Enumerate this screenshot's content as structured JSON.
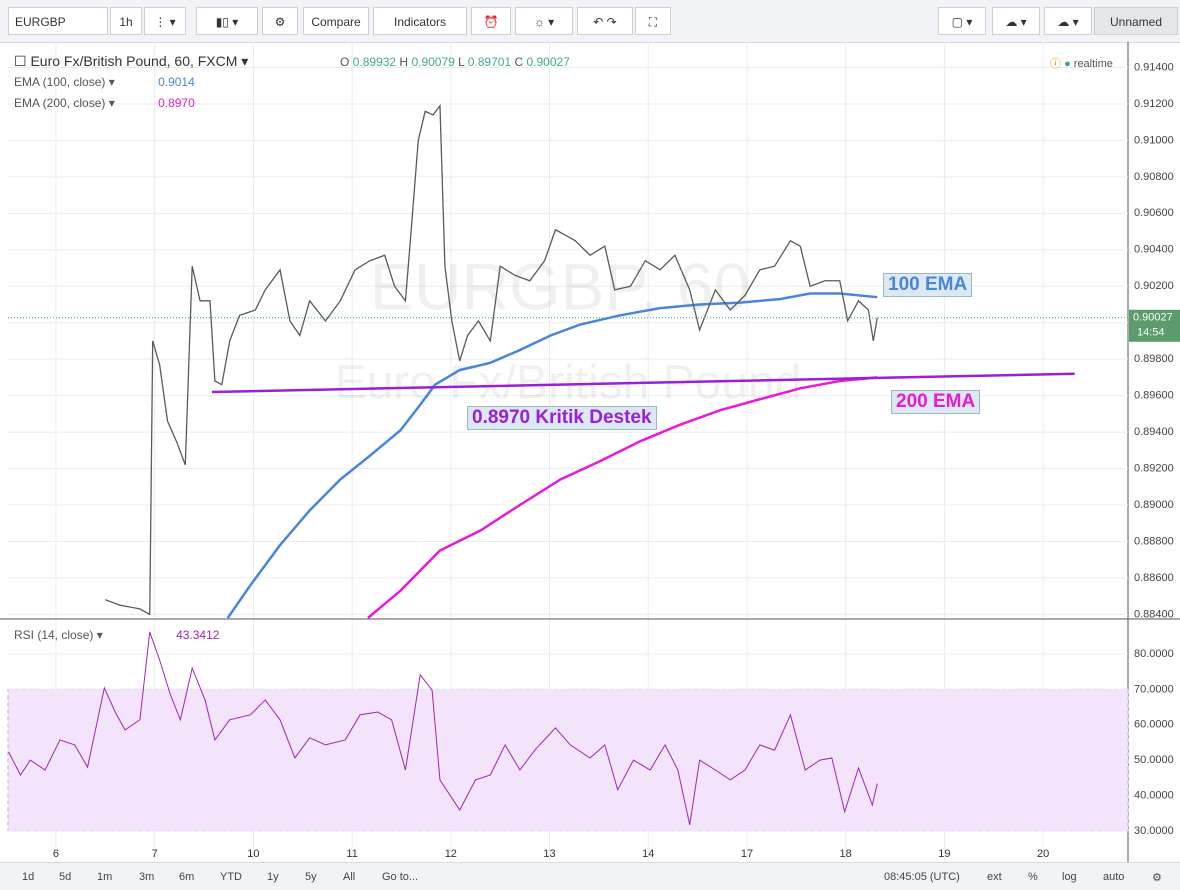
{
  "toolbar": {
    "symbol": "EURGBP",
    "interval": "1h",
    "buttons": [
      "Compare",
      "Indicators"
    ],
    "layout": "Unnamed"
  },
  "legend": {
    "ohlc_labels": [
      "O",
      "H",
      "L",
      "C"
    ],
    "ohlc_values": [
      "0.89932",
      "0.90079",
      "0.89701",
      "0.90027"
    ],
    "status": "realtime"
  },
  "x_axis": {
    "xlim": [
      -0.486,
      10.86
    ],
    "xticks": [
      {
        "value": 0,
        "label": "6"
      },
      {
        "value": 1,
        "label": "7"
      },
      {
        "value": 2,
        "label": "10"
      },
      {
        "value": 3,
        "label": "11"
      },
      {
        "value": 4,
        "label": "12"
      },
      {
        "value": 5,
        "label": "13"
      },
      {
        "value": 6,
        "label": "14"
      },
      {
        "value": 7,
        "label": "17"
      },
      {
        "value": 8,
        "label": "18"
      },
      {
        "value": 9,
        "label": "19"
      },
      {
        "value": 10,
        "label": "20"
      }
    ]
  },
  "chart_data": [
    {
      "type": "line",
      "title": "Euro Fx/British Pound, 60, FXCM",
      "watermark": "EURGBP, 60",
      "watermark_subtitle": "Euro Fx/British Pound",
      "color": "#5a5a5a",
      "x": [
        0.5,
        0.65,
        0.85,
        0.95,
        0.98,
        1.05,
        1.13,
        1.22,
        1.31,
        1.38,
        1.46,
        1.56,
        1.61,
        1.68,
        1.76,
        1.86,
        2.02,
        2.12,
        2.27,
        2.37,
        2.47,
        2.57,
        2.73,
        2.88,
        3.03,
        3.18,
        3.33,
        3.43,
        3.54,
        3.59,
        3.67,
        3.74,
        3.82,
        3.89,
        3.94,
        4.01,
        4.09,
        4.17,
        4.28,
        4.4,
        4.5,
        4.65,
        4.8,
        4.95,
        5.06,
        5.16,
        5.26,
        5.41,
        5.56,
        5.66,
        5.82,
        5.97,
        6.12,
        6.27,
        6.42,
        6.52,
        6.68,
        6.83,
        6.98,
        7.13,
        7.28,
        7.44,
        7.54,
        7.64,
        7.79,
        7.94,
        8.02,
        8.13,
        8.23,
        8.28,
        8.32
      ],
      "values": [
        0.8848,
        0.8845,
        0.8843,
        0.884,
        0.899,
        0.8977,
        0.8946,
        0.8935,
        0.8922,
        0.9031,
        0.9012,
        0.9012,
        0.8968,
        0.8966,
        0.899,
        0.9004,
        0.9007,
        0.9018,
        0.9029,
        0.9001,
        0.8993,
        0.9012,
        0.9001,
        0.9012,
        0.9029,
        0.9034,
        0.9037,
        0.902,
        0.9012,
        0.9045,
        0.91,
        0.9116,
        0.9114,
        0.9119,
        0.9031,
        0.9001,
        0.8979,
        0.8993,
        0.9001,
        0.899,
        0.9031,
        0.9026,
        0.9023,
        0.9034,
        0.9051,
        0.9048,
        0.9045,
        0.9037,
        0.9042,
        0.9018,
        0.902,
        0.9034,
        0.9029,
        0.9037,
        0.9018,
        0.8996,
        0.9018,
        0.9007,
        0.9015,
        0.9029,
        0.9031,
        0.9045,
        0.9042,
        0.902,
        0.9023,
        0.9023,
        0.9001,
        0.9012,
        0.9007,
        0.899,
        0.90027
      ],
      "series": [
        {
          "name": "EMA (100, close)",
          "value_label": "0.9014",
          "color": "#4a86d8",
          "annotation": "100 EMA",
          "x": [
            1.74,
            1.97,
            2.27,
            2.57,
            2.88,
            3.18,
            3.49,
            3.69,
            3.84,
            4.09,
            4.4,
            4.7,
            5.01,
            5.31,
            5.71,
            6.12,
            6.52,
            6.93,
            7.34,
            7.64,
            7.94,
            8.32
          ],
          "values": [
            0.8838,
            0.8856,
            0.8878,
            0.8897,
            0.8914,
            0.8927,
            0.8941,
            0.8955,
            0.8966,
            0.8974,
            0.8978,
            0.8985,
            0.8993,
            0.8999,
            0.9004,
            0.9008,
            0.901,
            0.9011,
            0.9013,
            0.9016,
            0.9016,
            0.9014
          ]
        },
        {
          "name": "EMA (200, close)",
          "value_label": "0.8970",
          "color": "#e81ad8",
          "annotation": "200 EMA",
          "x": [
            3.16,
            3.49,
            3.89,
            4.3,
            4.7,
            5.11,
            5.51,
            5.92,
            6.32,
            6.73,
            7.13,
            7.54,
            7.94,
            8.32
          ],
          "values": [
            0.8838,
            0.8853,
            0.8875,
            0.8886,
            0.89,
            0.8914,
            0.8924,
            0.8935,
            0.8944,
            0.8952,
            0.8958,
            0.8964,
            0.8968,
            0.897
          ]
        }
      ],
      "support": {
        "label": "0.8970 Kritik Destek",
        "color": "#9b1fd6",
        "x": [
          1.58,
          10.32
        ],
        "values": [
          0.8962,
          0.8972
        ]
      },
      "last_price": {
        "value": 0.90027,
        "time": "14:54"
      },
      "ylim": [
        0.8838,
        0.9154
      ],
      "yticks": [
        {
          "value": 0.914,
          "label": "0.91400"
        },
        {
          "value": 0.912,
          "label": "0.91200"
        },
        {
          "value": 0.91,
          "label": "0.91000"
        },
        {
          "value": 0.908,
          "label": "0.90800"
        },
        {
          "value": 0.906,
          "label": "0.90600"
        },
        {
          "value": 0.904,
          "label": "0.90400"
        },
        {
          "value": 0.902,
          "label": "0.90200"
        },
        {
          "value": 0.9,
          "label": "0.90000"
        },
        {
          "value": 0.898,
          "label": "0.89800"
        },
        {
          "value": 0.896,
          "label": "0.89600"
        },
        {
          "value": 0.894,
          "label": "0.89400"
        },
        {
          "value": 0.892,
          "label": "0.89200"
        },
        {
          "value": 0.89,
          "label": "0.89000"
        },
        {
          "value": 0.888,
          "label": "0.88800"
        },
        {
          "value": 0.886,
          "label": "0.88600"
        },
        {
          "value": 0.884,
          "label": "0.88400"
        }
      ]
    },
    {
      "type": "line",
      "title": "RSI (14, close)",
      "value_label": "43.3412",
      "color": "#9c27b0",
      "band": [
        30,
        70
      ],
      "x": [
        -0.48,
        -0.36,
        -0.26,
        -0.11,
        0.04,
        0.19,
        0.32,
        0.49,
        0.6,
        0.7,
        0.85,
        0.95,
        1.05,
        1.16,
        1.26,
        1.38,
        1.51,
        1.61,
        1.76,
        1.97,
        2.12,
        2.27,
        2.42,
        2.57,
        2.73,
        2.93,
        3.08,
        3.26,
        3.4,
        3.54,
        3.69,
        3.81,
        3.89,
        4.09,
        4.25,
        4.4,
        4.55,
        4.7,
        4.85,
        5.06,
        5.21,
        5.41,
        5.56,
        5.69,
        5.85,
        6.02,
        6.17,
        6.3,
        6.42,
        6.52,
        6.68,
        6.83,
        6.98,
        7.13,
        7.28,
        7.44,
        7.59,
        7.74,
        7.86,
        7.99,
        8.13,
        8.27,
        8.32
      ],
      "values": [
        52.3,
        45.8,
        50,
        47.2,
        55.7,
        54.3,
        48,
        70.4,
        63.6,
        58.5,
        61.4,
        86.2,
        78.3,
        68.4,
        61.4,
        76,
        67,
        55.7,
        61.4,
        62.8,
        67,
        61.4,
        50.6,
        56.3,
        54.3,
        55.7,
        62.8,
        63.6,
        61.4,
        47.2,
        74.1,
        69.8,
        44.4,
        35.9,
        44.4,
        45.8,
        54.3,
        47.2,
        52.8,
        59.1,
        54.3,
        50.6,
        54.3,
        41.6,
        50,
        47.2,
        54.3,
        47.2,
        31.7,
        50,
        47.2,
        44.4,
        47.2,
        54.3,
        52.8,
        62.8,
        47.2,
        50,
        50.6,
        35.4,
        47.8,
        37.3,
        43.3412
      ],
      "ylim": [
        21.2,
        89.6
      ],
      "yticks": [
        {
          "value": 80,
          "label": "80.0000"
        },
        {
          "value": 70,
          "label": "70.0000"
        },
        {
          "value": 60,
          "label": "60.0000"
        },
        {
          "value": 50,
          "label": "50.0000"
        },
        {
          "value": 40,
          "label": "40.0000"
        },
        {
          "value": 30,
          "label": "30.0000"
        }
      ]
    }
  ],
  "bottom_bar": {
    "ranges": [
      "1d",
      "5d",
      "1m",
      "3m",
      "6m",
      "YTD",
      "1y",
      "5y",
      "All",
      "Go to..."
    ],
    "clock": "08:45:05 (UTC)",
    "options": [
      "ext",
      "%",
      "log",
      "auto"
    ]
  }
}
